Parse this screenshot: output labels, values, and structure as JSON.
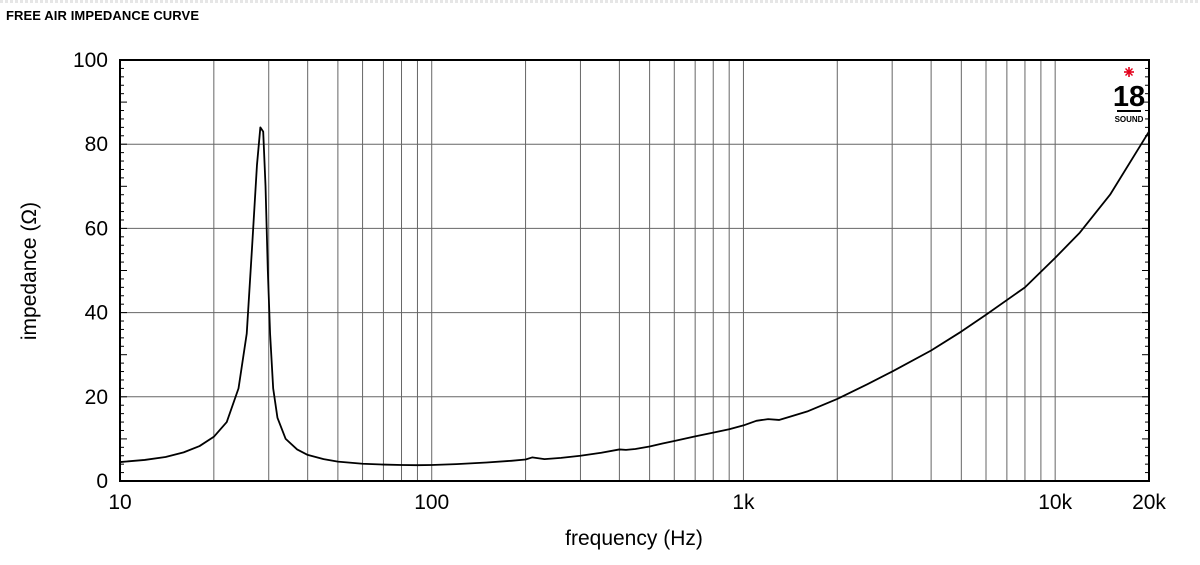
{
  "header": {
    "title": "FREE AIR IMPEDANCE CURVE"
  },
  "logo": {
    "number": "18",
    "word": "SOUND",
    "star_color": "#e3001b"
  },
  "chart_data": {
    "type": "line",
    "title": "FREE AIR IMPEDANCE CURVE",
    "xlabel": "frequency (Hz)",
    "ylabel": "impedance (Ω)",
    "xscale": "log",
    "xlim": [
      10,
      20000
    ],
    "ylim": [
      0,
      100
    ],
    "grid": true,
    "x_ticks": [
      {
        "value": 10,
        "label": "10"
      },
      {
        "value": 100,
        "label": "100"
      },
      {
        "value": 1000,
        "label": "1k"
      },
      {
        "value": 10000,
        "label": "10k"
      },
      {
        "value": 20000,
        "label": "20k"
      }
    ],
    "y_ticks": [
      {
        "value": 0,
        "label": "0"
      },
      {
        "value": 20,
        "label": "20"
      },
      {
        "value": 40,
        "label": "40"
      },
      {
        "value": 60,
        "label": "60"
      },
      {
        "value": 80,
        "label": "80"
      },
      {
        "value": 100,
        "label": "100"
      }
    ],
    "line_color": "#000000",
    "series": [
      {
        "x": [
          10,
          12,
          14,
          16,
          18,
          20,
          22,
          24,
          25.5,
          26.5,
          27.5,
          28.2,
          28.8,
          29.3,
          29.8,
          30.3,
          31,
          32,
          34,
          37,
          40,
          45,
          50,
          60,
          70,
          80,
          90,
          100,
          120,
          150,
          180,
          200,
          210,
          230,
          260,
          300,
          350,
          400,
          420,
          450,
          500,
          550,
          600,
          700,
          800,
          900,
          1000,
          1100,
          1200,
          1300,
          1400,
          1600,
          2000,
          2500,
          3000,
          4000,
          5000,
          6000,
          8000,
          10000,
          12000,
          15000,
          20000
        ],
        "y": [
          4.5,
          5,
          5.7,
          6.8,
          8.3,
          10.5,
          14,
          22,
          35,
          55,
          75,
          84,
          83,
          70,
          50,
          35,
          22,
          15,
          10,
          7.5,
          6.2,
          5.2,
          4.6,
          4.1,
          3.9,
          3.8,
          3.75,
          3.8,
          4.0,
          4.4,
          4.8,
          5.1,
          5.6,
          5.2,
          5.5,
          6.0,
          6.7,
          7.5,
          7.4,
          7.6,
          8.2,
          8.9,
          9.5,
          10.6,
          11.5,
          12.3,
          13.2,
          14.3,
          14.7,
          14.5,
          15.2,
          16.5,
          19.5,
          23,
          26,
          31,
          35.5,
          39.5,
          46,
          53,
          59,
          68,
          83
        ]
      }
    ]
  }
}
